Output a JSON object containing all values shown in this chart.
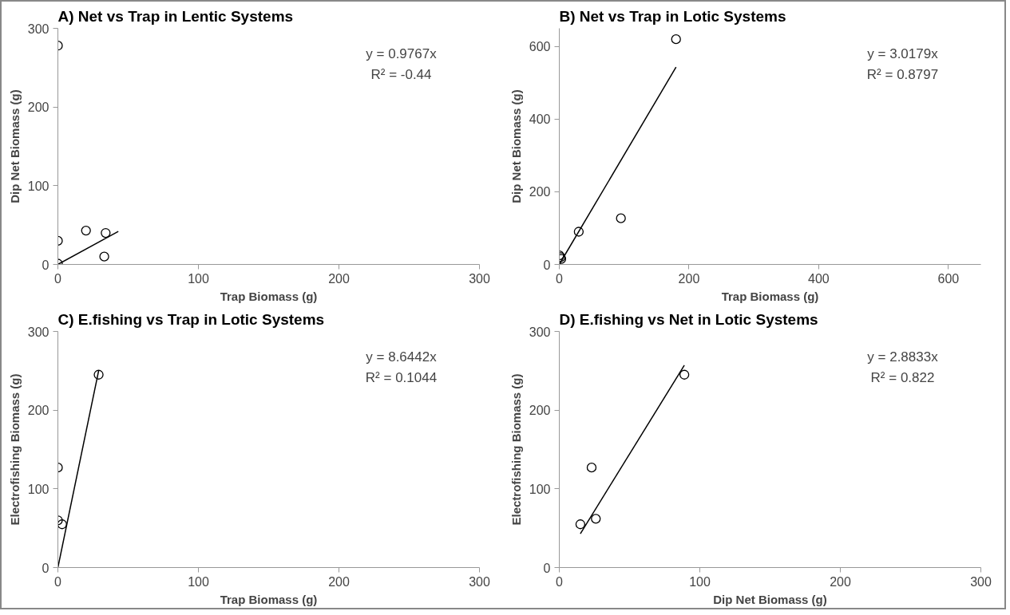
{
  "chart_data": [
    {
      "type": "scatter",
      "title": "A)  Net vs Trap in Lentic Systems",
      "xlabel": "Trap Biomass (g)",
      "ylabel": "Dip Net Biomass (g)",
      "xlim": [
        0,
        300
      ],
      "ylim": [
        0,
        300
      ],
      "xticks": [
        0,
        100,
        200,
        300
      ],
      "yticks": [
        0,
        100,
        200,
        300
      ],
      "grid": false,
      "annotations": [
        "y = 0.9767x",
        "R² = -0.44"
      ],
      "series": [
        {
          "type": "scatter",
          "marker": "circle",
          "color": "#000000",
          "x": [
            0,
            0,
            0,
            20,
            34,
            33
          ],
          "values": [
            278,
            30,
            1,
            43,
            40,
            10
          ]
        },
        {
          "type": "line",
          "marker": "none",
          "color": "#000000",
          "x": [
            0,
            43
          ],
          "values": [
            0,
            42
          ]
        }
      ]
    },
    {
      "type": "scatter",
      "title": "B)  Net vs Trap in Lotic Systems",
      "xlabel": "Trap Biomass (g)",
      "ylabel": "Dip Net Biomass (g)",
      "xlim": [
        0,
        650
      ],
      "ylim": [
        0,
        650
      ],
      "xticks": [
        0,
        200,
        400,
        600
      ],
      "yticks": [
        0,
        200,
        400,
        600
      ],
      "grid": false,
      "annotations": [
        "y = 3.0179x",
        "R² = 0.8797"
      ],
      "series": [
        {
          "type": "scatter",
          "marker": "circle",
          "color": "#000000",
          "x": [
            0,
            2,
            3,
            30,
            95,
            180
          ],
          "values": [
            25,
            20,
            15,
            90,
            127,
            620
          ]
        },
        {
          "type": "line",
          "marker": "none",
          "color": "#000000",
          "x": [
            0,
            180
          ],
          "values": [
            0,
            543
          ]
        }
      ]
    },
    {
      "type": "scatter",
      "title": "C)  E.fishing vs Trap in Lotic Systems",
      "xlabel": "Trap Biomass (g)",
      "ylabel": "Electrofishing Biomass (g)",
      "xlim": [
        0,
        300
      ],
      "ylim": [
        0,
        300
      ],
      "xticks": [
        0,
        100,
        200,
        300
      ],
      "yticks": [
        0,
        100,
        200,
        300
      ],
      "grid": false,
      "annotations": [
        "y = 8.6442x",
        "R² = 0.1044"
      ],
      "series": [
        {
          "type": "scatter",
          "marker": "circle",
          "color": "#000000",
          "x": [
            0,
            0,
            3,
            29
          ],
          "values": [
            127,
            60,
            55,
            245
          ]
        },
        {
          "type": "line",
          "marker": "none",
          "color": "#000000",
          "x": [
            0,
            29
          ],
          "values": [
            0,
            250
          ]
        }
      ]
    },
    {
      "type": "scatter",
      "title": "D)  E.fishing vs Net in Lotic Systems",
      "xlabel": "Dip Net Biomass (g)",
      "ylabel": "Electrofishing Biomass (g)",
      "xlim": [
        0,
        300
      ],
      "ylim": [
        0,
        300
      ],
      "xticks": [
        0,
        100,
        200,
        300
      ],
      "yticks": [
        0,
        100,
        200,
        300
      ],
      "grid": false,
      "annotations": [
        "y = 2.8833x",
        "R² = 0.822"
      ],
      "series": [
        {
          "type": "scatter",
          "marker": "circle",
          "color": "#000000",
          "x": [
            15,
            23,
            26,
            89
          ],
          "values": [
            55,
            127,
            62,
            245
          ]
        },
        {
          "type": "line",
          "marker": "none",
          "color": "#000000",
          "x": [
            15,
            89
          ],
          "values": [
            43,
            257
          ]
        }
      ]
    }
  ]
}
